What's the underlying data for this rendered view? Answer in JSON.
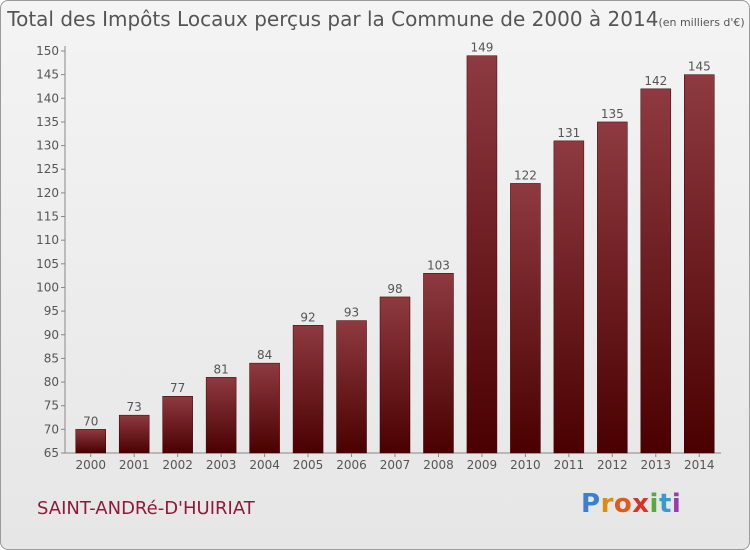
{
  "title": "Total des Impôts Locaux perçus par la Commune de 2000 à 2014",
  "unit": "(en milliers d'€)",
  "commune": "SAINT-ANDRé-D'HUIRIAT",
  "logo": "Proxiti",
  "colors": {
    "bar_top": "#8e3a40",
    "bar_bottom": "#4a0000",
    "axis": "#888888",
    "text": "#555555"
  },
  "chart_data": {
    "type": "bar",
    "title": "Total des Impôts Locaux perçus par la Commune de 2000 à 2014",
    "categories": [
      "2000",
      "2001",
      "2002",
      "2003",
      "2004",
      "2005",
      "2006",
      "2007",
      "2008",
      "2009",
      "2010",
      "2011",
      "2012",
      "2013",
      "2014"
    ],
    "values": [
      70,
      73,
      77,
      81,
      84,
      92,
      93,
      98,
      103,
      149,
      122,
      131,
      135,
      142,
      145
    ],
    "ylim": [
      65,
      150
    ],
    "yticks": [
      65,
      70,
      75,
      80,
      85,
      90,
      95,
      100,
      105,
      110,
      115,
      120,
      125,
      130,
      135,
      140,
      145,
      150
    ],
    "grid": false,
    "legend": "none"
  }
}
